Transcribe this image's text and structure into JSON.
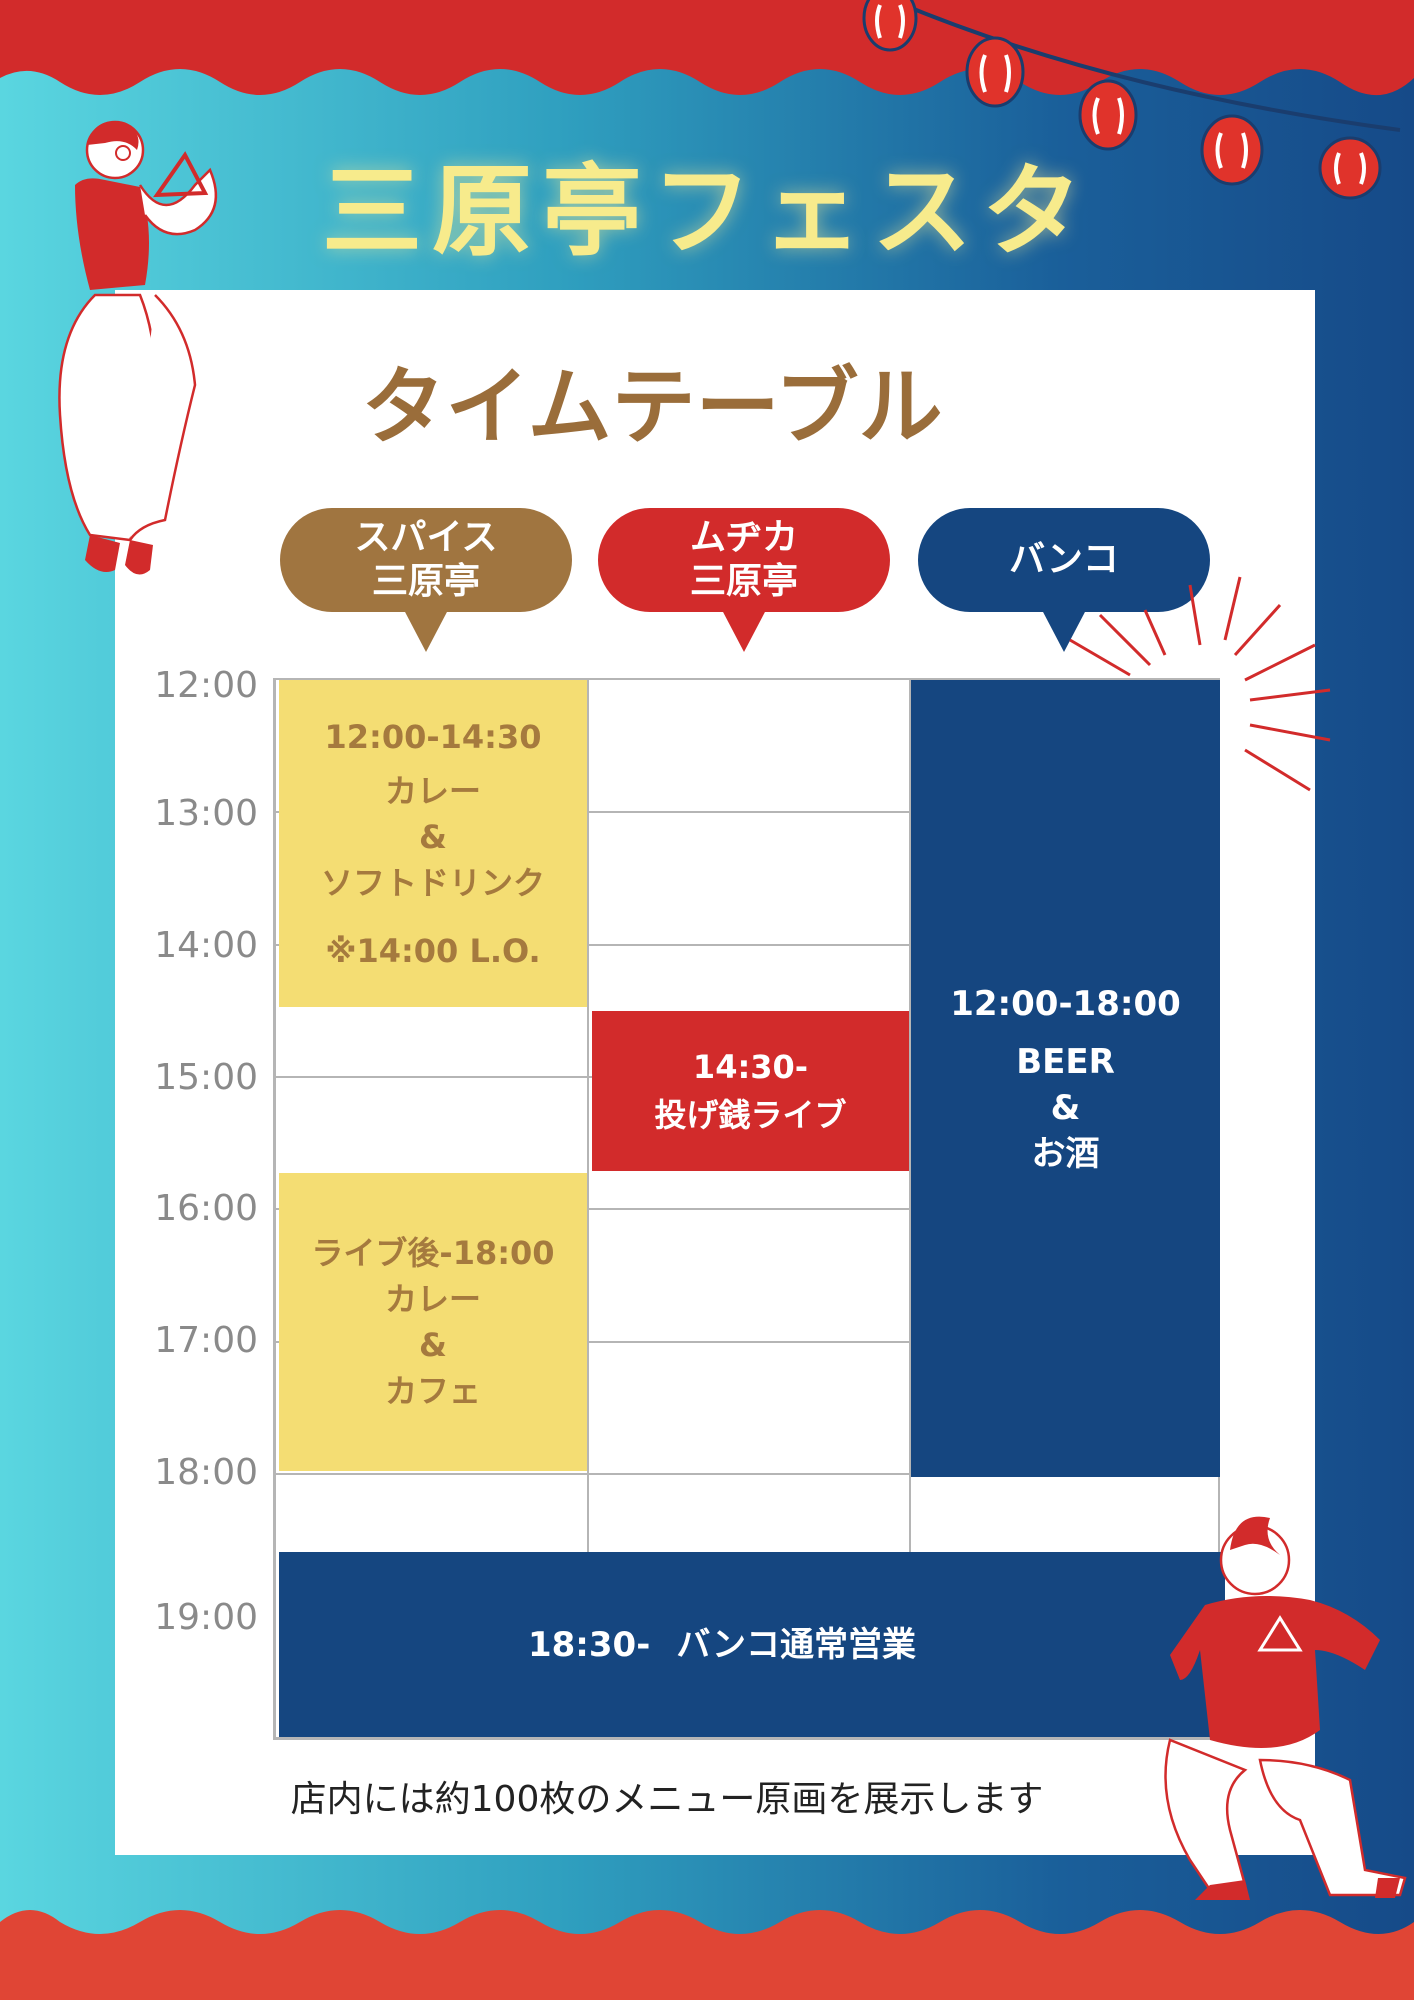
{
  "title": "三原亭フェスタ",
  "subtitle": "タイムテーブル",
  "columns": [
    {
      "label": "スパイス\n三原亭",
      "color": "#a07540"
    },
    {
      "label": "ムヂカ\n三原亭",
      "color": "#d22b2b"
    },
    {
      "label": "バンコ",
      "color": "#154680"
    }
  ],
  "times": [
    "12:00",
    "13:00",
    "14:00",
    "15:00",
    "16:00",
    "17:00",
    "18:00",
    "19:00"
  ],
  "blocks": {
    "spice_lunch": {
      "time": "12:00-14:30",
      "line1": "カレー",
      "line2": "&",
      "line3": "ソフトドリンク",
      "note": "※14:00 L.O."
    },
    "spice_evening": {
      "time": "ライブ後-18:00",
      "line1": "カレー",
      "line2": "&",
      "line3": "カフェ"
    },
    "muzika_live": {
      "time": "14:30-",
      "line1": "投げ銭ライブ"
    },
    "banko_day": {
      "time": "12:00-18:00",
      "line1": "BEER",
      "line2": "&",
      "line3": "お酒"
    },
    "banko_night": {
      "time": "18:30-",
      "line1": "バンコ通常営業"
    }
  },
  "footer": "店内には約100枚のメニュー原画を展示します",
  "colors": {
    "red": "#d22b2b",
    "yellow": "#f4dd73",
    "navy": "#154680",
    "brown": "#9a6d3a",
    "title": "#f7eb8c"
  }
}
